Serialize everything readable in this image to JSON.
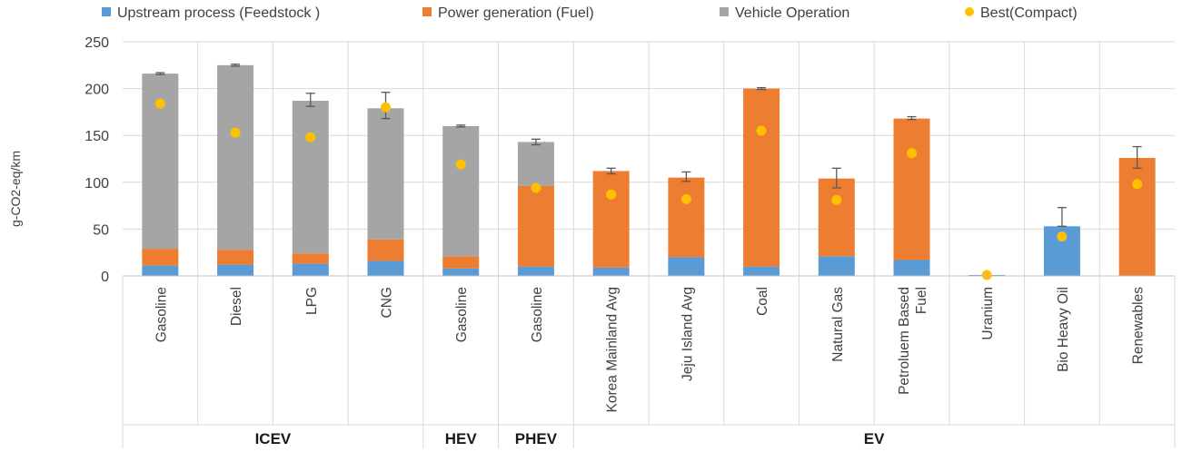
{
  "chart_data": {
    "type": "bar",
    "stacked": true,
    "ylabel": "g-CO2-eq/km",
    "ylim": [
      0,
      250
    ],
    "yticks": [
      0,
      50,
      100,
      150,
      200,
      250
    ],
    "grid": true,
    "legend_position": "top",
    "categories": [
      "Gasoline",
      "Diesel",
      "LPG",
      "CNG",
      "Gasoline",
      "Gasoline",
      "Korea Mainland Avg",
      "Jeju Island Avg",
      "Coal",
      "Natural Gas",
      "Petroluem Based Fuel",
      "Uranium",
      "Bio Heavy Oil",
      "Renewables"
    ],
    "category_lines": [
      [
        "Gasoline"
      ],
      [
        "Diesel"
      ],
      [
        "LPG"
      ],
      [
        "CNG"
      ],
      [
        "Gasoline"
      ],
      [
        "Gasoline"
      ],
      [
        "Korea Mainland Avg"
      ],
      [
        "Jeju Island Avg"
      ],
      [
        "Coal"
      ],
      [
        "Natural Gas"
      ],
      [
        "Petroluem Based",
        "Fuel"
      ],
      [
        "Uranium"
      ],
      [
        "Bio Heavy Oil"
      ],
      [
        "Renewables"
      ]
    ],
    "groups": [
      {
        "name": "ICEV",
        "start": 0,
        "end": 3
      },
      {
        "name": "HEV",
        "start": 4,
        "end": 4
      },
      {
        "name": "PHEV",
        "start": 5,
        "end": 5
      },
      {
        "name": "EV",
        "start": 6,
        "end": 13
      }
    ],
    "series": [
      {
        "name": "Upstream process (Feedstock )",
        "color": "#5b9bd5",
        "values": [
          11,
          12,
          13,
          16,
          8,
          10,
          9,
          20,
          10,
          21,
          17,
          1,
          53,
          0
        ]
      },
      {
        "name": "Power generation (Fuel)",
        "color": "#ed7d31",
        "values": [
          18,
          16,
          11,
          23,
          13,
          86,
          103,
          85,
          190,
          83,
          151,
          0,
          0,
          126
        ]
      },
      {
        "name": "Vehicle Operation",
        "color": "#a5a5a5",
        "values": [
          187,
          197,
          163,
          140,
          139,
          47,
          0,
          0,
          0,
          0,
          0,
          0,
          0,
          0
        ]
      }
    ],
    "error_bars": [
      [
        215,
        217
      ],
      [
        224,
        226
      ],
      [
        181,
        195
      ],
      [
        168,
        196
      ],
      [
        159,
        161
      ],
      [
        140,
        146
      ],
      [
        109,
        115
      ],
      [
        101,
        111
      ],
      [
        199,
        201
      ],
      [
        94,
        115
      ],
      [
        167,
        170
      ],
      null,
      [
        53,
        73
      ],
      [
        115,
        138
      ]
    ],
    "best_compact": {
      "name": "Best(Compact)",
      "color": "#ffc000",
      "values": [
        184,
        153,
        148,
        180,
        119,
        94,
        87,
        82,
        155,
        81,
        131,
        1,
        42,
        98
      ]
    }
  }
}
